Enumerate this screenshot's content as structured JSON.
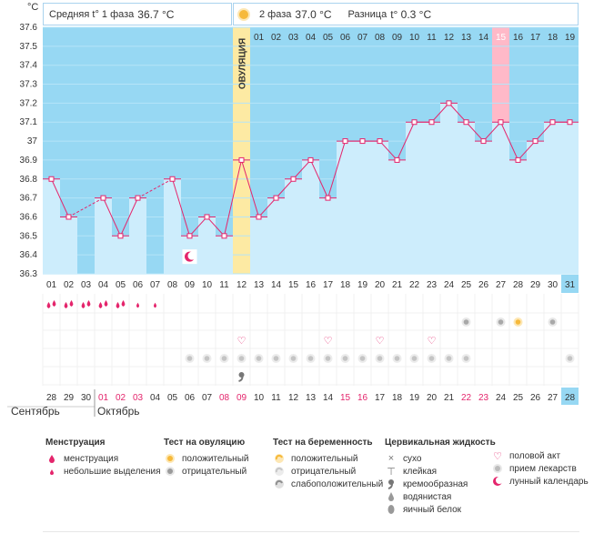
{
  "header": {
    "phase1_label": "Средняя t° 1 фаза",
    "phase1_value": "36.7 °C",
    "phase2_label": "2 фаза",
    "phase2_value": "37.0 °C",
    "diff_label": "Разница",
    "diff_value": "t° 0.3 °C"
  },
  "chart_data": {
    "type": "line",
    "title": "",
    "ylabel": "°C",
    "ylim": [
      36.3,
      37.6
    ],
    "yticks": [
      "36.3",
      "36.4",
      "36.5",
      "36.6",
      "36.7",
      "36.8",
      "36.9",
      "37",
      "37.1",
      "37.2",
      "37.3",
      "37.4",
      "37.5",
      "37.6"
    ],
    "cycle_days": [
      "01",
      "02",
      "03",
      "04",
      "05",
      "06",
      "07",
      "08",
      "09",
      "10",
      "11",
      "12",
      "13",
      "14",
      "15",
      "16",
      "17",
      "18",
      "19",
      "20",
      "21",
      "22",
      "23",
      "24",
      "25",
      "26",
      "27",
      "28",
      "29",
      "30",
      "31"
    ],
    "dates": [
      "28",
      "29",
      "30",
      "01",
      "02",
      "03",
      "04",
      "05",
      "06",
      "07",
      "08",
      "09",
      "10",
      "11",
      "12",
      "13",
      "14",
      "15",
      "16",
      "17",
      "18",
      "19",
      "20",
      "21",
      "22",
      "23",
      "24",
      "25",
      "26",
      "27",
      "28"
    ],
    "top_day_numbers": [
      "01",
      "02",
      "03",
      "04",
      "05",
      "06",
      "07",
      "08",
      "09",
      "10",
      "11",
      "12",
      "13",
      "14",
      "15",
      "16",
      "17",
      "18",
      "19"
    ],
    "temperatures": [
      36.8,
      36.6,
      null,
      36.7,
      36.5,
      36.7,
      null,
      36.8,
      36.5,
      36.6,
      36.5,
      36.9,
      36.6,
      36.7,
      36.8,
      36.9,
      36.7,
      37.0,
      37.0,
      37.0,
      36.9,
      37.1,
      37.1,
      37.2,
      37.1,
      37.0,
      37.1,
      36.9,
      37.0,
      37.1,
      37.1
    ],
    "ovulation_day": 12,
    "ovulation_label": "ОВУЛЯЦИЯ",
    "highlight_top_day": "15",
    "highlight_last_day": "31",
    "highlight_last_date": "28",
    "red_dates": [
      "01",
      "02",
      "03",
      "08",
      "09",
      "15",
      "16",
      "22",
      "23"
    ],
    "months": [
      "Сентябрь",
      "Октябрь"
    ],
    "moon_day": 9,
    "menstruation_heavy_days": [
      1,
      2,
      3,
      4,
      5
    ],
    "menstruation_light_days": [
      6,
      7
    ],
    "pregnancy_test_negative_days": [
      25,
      27,
      30
    ],
    "pregnancy_test_weak_days": [
      28
    ],
    "ovulation_test_positive_days": [],
    "ovulation_test_negative_days": [],
    "intercourse_days": [
      12,
      17,
      20,
      23
    ],
    "medication_days": [
      9,
      10,
      11,
      12,
      13,
      14,
      15,
      16,
      17,
      18,
      19,
      20,
      21,
      22,
      23,
      24,
      25,
      31
    ],
    "mucus_creamy_days": [
      12
    ]
  },
  "colors": {
    "sky": "#97d8f3",
    "bar": "#cdedfc",
    "ovulation": "#fdeaa3",
    "highlight_pink": "#ffb9c8",
    "line": "#e4256c",
    "red_text": "#e4256c"
  },
  "legend": {
    "menstruation": {
      "title": "Менструация",
      "items": [
        "менструация",
        "небольшие выделения"
      ]
    },
    "ovulation_test": {
      "title": "Тест на овуляцию",
      "items": [
        "положительный",
        "отрицательный"
      ]
    },
    "pregnancy_test": {
      "title": "Тест на беременность",
      "items": [
        "положительный",
        "отрицательный",
        "слабоположительный"
      ]
    },
    "mucus": {
      "title": "Цервикальная жидкость",
      "items": [
        "сухо",
        "клейкая",
        "кремообразная",
        "водянистая",
        "яичный белок"
      ]
    },
    "other": {
      "items": [
        "половой акт",
        "прием лекарств",
        "лунный календарь"
      ]
    }
  }
}
